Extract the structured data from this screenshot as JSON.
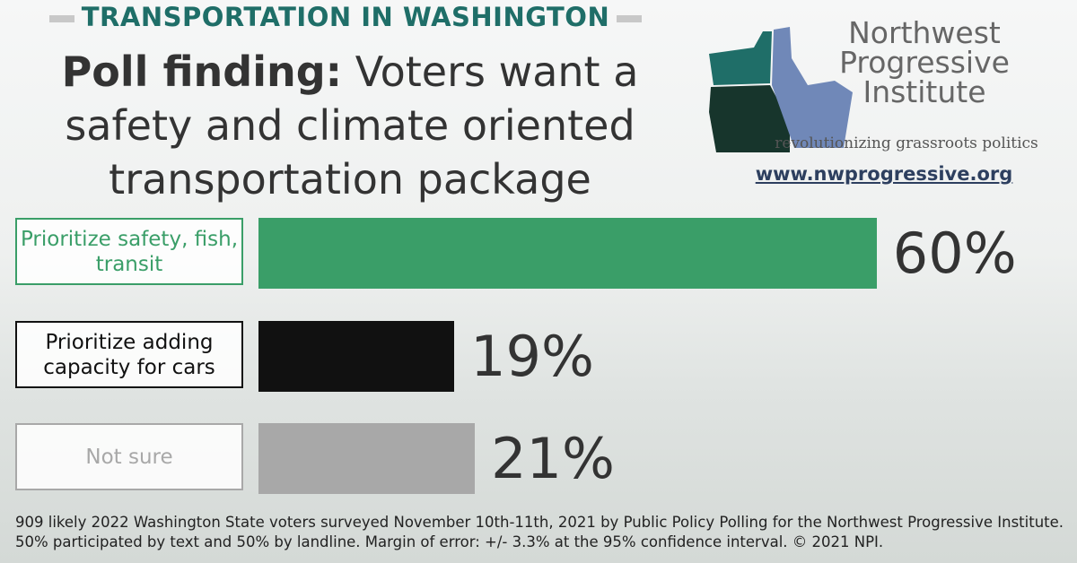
{
  "header": {
    "kicker": "TRANSPORTATION IN WASHINGTON",
    "title_lead": "Poll finding:",
    "title": "Voters want a safety and climate oriented transportation package"
  },
  "logo": {
    "name": "Northwest Progressive Institute",
    "tagline": "revolutionizing grassroots politics",
    "url": "www.nwprogressive.org"
  },
  "chart_data": {
    "type": "bar",
    "orientation": "horizontal",
    "categories": [
      "Prioritize safety, fish, transit",
      "Prioritize adding capacity for cars",
      "Not sure"
    ],
    "values": [
      60,
      19,
      21
    ],
    "value_labels": [
      "60%",
      "19%",
      "21%"
    ],
    "colors": [
      "#3a9e68",
      "#111111",
      "#a8a8a8"
    ]
  },
  "footnote": "909 likely 2022 Washington State voters surveyed November 10th-11th, 2021 by Public Policy Polling for the Northwest Progressive Institute. 50% participated by text and 50% by landline. Margin of error: +/- 3.3% at the 95% confidence interval. © 2021 NPI."
}
